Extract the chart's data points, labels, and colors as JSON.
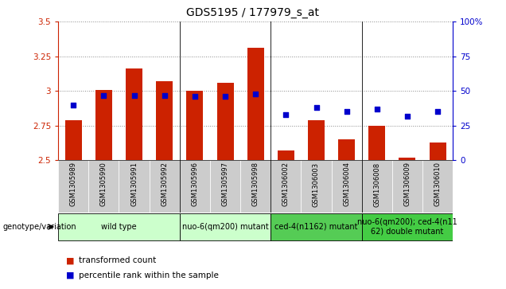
{
  "title": "GDS5195 / 177979_s_at",
  "samples": [
    "GSM1305989",
    "GSM1305990",
    "GSM1305991",
    "GSM1305992",
    "GSM1305996",
    "GSM1305997",
    "GSM1305998",
    "GSM1306002",
    "GSM1306003",
    "GSM1306004",
    "GSM1306008",
    "GSM1306009",
    "GSM1306010"
  ],
  "bar_values": [
    2.79,
    3.01,
    3.16,
    3.07,
    3.0,
    3.06,
    3.31,
    2.57,
    2.79,
    2.65,
    2.75,
    2.52,
    2.63
  ],
  "percentile_values": [
    40,
    47,
    47,
    47,
    46,
    46,
    48,
    33,
    38,
    35,
    37,
    32,
    35
  ],
  "ylim_left": [
    2.5,
    3.5
  ],
  "ylim_right": [
    0,
    100
  ],
  "yticks_left": [
    2.5,
    2.75,
    3.0,
    3.25,
    3.5
  ],
  "yticks_right": [
    0,
    25,
    50,
    75,
    100
  ],
  "ytick_labels_left": [
    "2.5",
    "2.75",
    "3",
    "3.25",
    "3.5"
  ],
  "ytick_labels_right": [
    "0",
    "25",
    "50",
    "75",
    "100%"
  ],
  "bar_color": "#cc2200",
  "dot_color": "#0000cc",
  "bar_bottom": 2.5,
  "groups": [
    {
      "label": "wild type",
      "start": 0,
      "end": 4,
      "color": "#ccffcc"
    },
    {
      "label": "nuo-6(qm200) mutant",
      "start": 4,
      "end": 7,
      "color": "#ccffcc"
    },
    {
      "label": "ced-4(n1162) mutant",
      "start": 7,
      "end": 10,
      "color": "#55cc55"
    },
    {
      "label": "nuo-6(qm200); ced-4(n11\n62) double mutant",
      "start": 10,
      "end": 13,
      "color": "#44cc44"
    }
  ],
  "group_dividers": [
    3.5,
    6.5,
    9.5
  ],
  "legend_items": [
    {
      "label": "transformed count",
      "color": "#cc2200"
    },
    {
      "label": "percentile rank within the sample",
      "color": "#0000cc"
    }
  ],
  "genotype_label": "genotype/variation",
  "sample_bg_color": "#cccccc",
  "plot_bg": "#ffffff",
  "grid_color": "#888888",
  "title_fontsize": 10,
  "tick_fontsize": 7.5,
  "sample_fontsize": 6,
  "group_fontsize": 7
}
